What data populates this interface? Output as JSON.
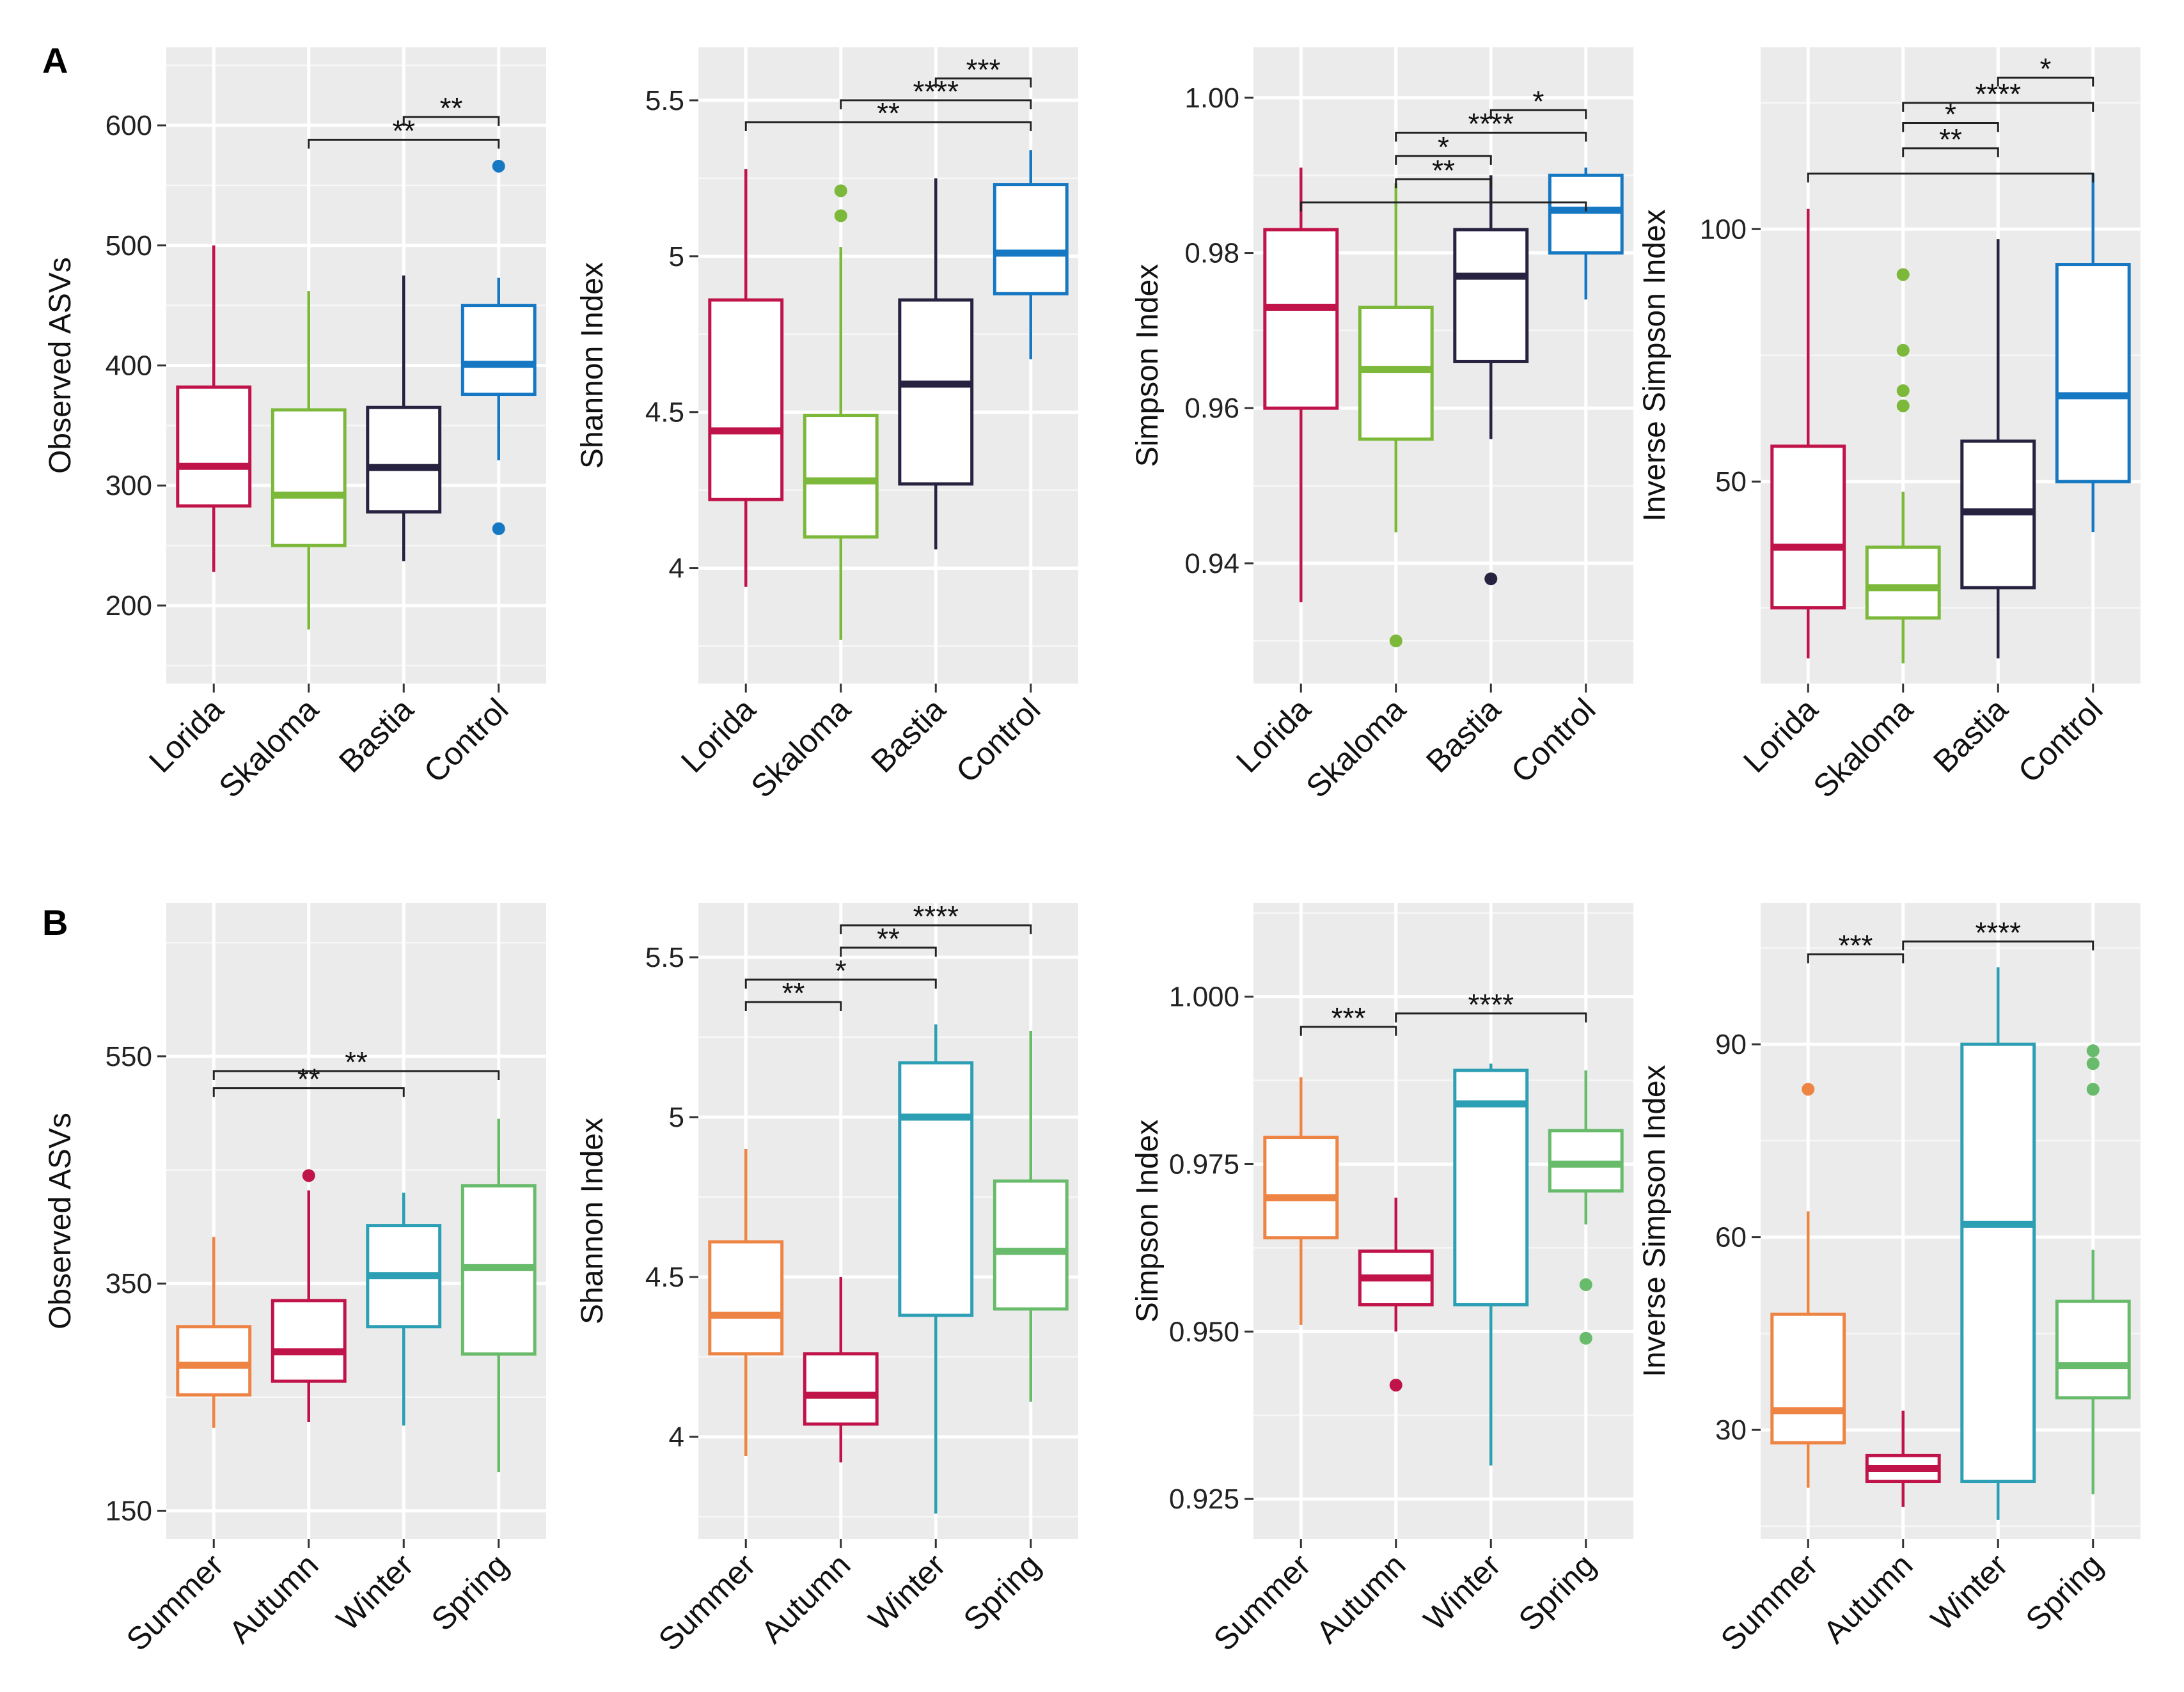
{
  "figure": {
    "panel_labels": [
      "A",
      "B"
    ]
  },
  "chart_data": [
    {
      "type": "boxplot",
      "row": 0,
      "col": 0,
      "ylabel": "Observed ASVs",
      "ylim": [
        135,
        665
      ],
      "yticks": [
        200,
        300,
        400,
        500,
        600
      ],
      "categories": [
        "Lorida",
        "Skaloma",
        "Bastia",
        "Control"
      ],
      "colors": [
        "#c0134a",
        "#7cb83a",
        "#26223f",
        "#1677c2"
      ],
      "boxes": [
        {
          "min": 228,
          "q1": 283,
          "median": 316,
          "q3": 382,
          "max": 500,
          "outliers": []
        },
        {
          "min": 180,
          "q1": 250,
          "median": 292,
          "q3": 363,
          "max": 462,
          "outliers": []
        },
        {
          "min": 237,
          "q1": 278,
          "median": 315,
          "q3": 365,
          "max": 475,
          "outliers": []
        },
        {
          "min": 321,
          "q1": 376,
          "median": 401,
          "q3": 450,
          "max": 473,
          "outliers": [
            264,
            566
          ]
        }
      ],
      "significance": [
        {
          "from": 2,
          "to": 3,
          "label": "**",
          "y": 607
        },
        {
          "from": 1,
          "to": 3,
          "label": "**",
          "y": 588
        }
      ]
    },
    {
      "type": "boxplot",
      "row": 0,
      "col": 1,
      "ylabel": "Shannon Index",
      "ylim": [
        3.63,
        5.67
      ],
      "yticks": [
        4.0,
        4.5,
        5.0,
        5.5
      ],
      "categories": [
        "Lorida",
        "Skaloma",
        "Bastia",
        "Control"
      ],
      "colors": [
        "#c0134a",
        "#7cb83a",
        "#26223f",
        "#1677c2"
      ],
      "boxes": [
        {
          "min": 3.94,
          "q1": 4.22,
          "median": 4.44,
          "q3": 4.86,
          "max": 5.28,
          "outliers": []
        },
        {
          "min": 3.77,
          "q1": 4.1,
          "median": 4.28,
          "q3": 4.49,
          "max": 5.03,
          "outliers": [
            5.13,
            5.21
          ]
        },
        {
          "min": 4.06,
          "q1": 4.27,
          "median": 4.59,
          "q3": 4.86,
          "max": 5.25,
          "outliers": []
        },
        {
          "min": 4.67,
          "q1": 4.88,
          "median": 5.01,
          "q3": 5.23,
          "max": 5.34,
          "outliers": []
        }
      ],
      "significance": [
        {
          "from": 2,
          "to": 3,
          "label": "***",
          "y": 5.57
        },
        {
          "from": 1,
          "to": 3,
          "label": "****",
          "y": 5.5
        },
        {
          "from": 0,
          "to": 3,
          "label": "**",
          "y": 5.43
        }
      ]
    },
    {
      "type": "boxplot",
      "row": 0,
      "col": 2,
      "ylabel": "Simpson Index",
      "ylim": [
        0.9245,
        1.0065
      ],
      "yticks": [
        0.94,
        0.96,
        0.98,
        1.0
      ],
      "ytick_labels": [
        "0.94",
        "0.96",
        "0.98",
        "1.00"
      ],
      "categories": [
        "Lorida",
        "Skaloma",
        "Bastia",
        "Control"
      ],
      "colors": [
        "#c0134a",
        "#7cb83a",
        "#26223f",
        "#1677c2"
      ],
      "boxes": [
        {
          "min": 0.935,
          "q1": 0.96,
          "median": 0.973,
          "q3": 0.983,
          "max": 0.991,
          "outliers": []
        },
        {
          "min": 0.944,
          "q1": 0.956,
          "median": 0.965,
          "q3": 0.973,
          "max": 0.989,
          "outliers": [
            0.93
          ]
        },
        {
          "min": 0.956,
          "q1": 0.966,
          "median": 0.977,
          "q3": 0.983,
          "max": 0.99,
          "outliers": [
            0.938
          ]
        },
        {
          "min": 0.974,
          "q1": 0.98,
          "median": 0.9855,
          "q3": 0.99,
          "max": 0.991,
          "outliers": []
        }
      ],
      "significance": [
        {
          "from": 2,
          "to": 3,
          "label": "*",
          "y": 0.9984
        },
        {
          "from": 1,
          "to": 3,
          "label": "****",
          "y": 0.9955
        },
        {
          "from": 1,
          "to": 2,
          "label": "*",
          "y": 0.9925
        },
        {
          "from": 1,
          "to": 2,
          "label": "**",
          "y": 0.9895
        },
        {
          "from": 0,
          "to": 3,
          "label": "",
          "y": 0.9865
        }
      ]
    },
    {
      "type": "boxplot",
      "row": 0,
      "col": 3,
      "ylabel": "Inverse Simpson Index",
      "ylim": [
        10,
        136
      ],
      "yticks": [
        50,
        100
      ],
      "categories": [
        "Lorida",
        "Skaloma",
        "Bastia",
        "Control"
      ],
      "colors": [
        "#c0134a",
        "#7cb83a",
        "#26223f",
        "#1677c2"
      ],
      "boxes": [
        {
          "min": 15,
          "q1": 25,
          "median": 37,
          "q3": 57,
          "max": 104,
          "outliers": []
        },
        {
          "min": 14,
          "q1": 23,
          "median": 29,
          "q3": 37,
          "max": 48,
          "outliers": [
            65,
            68,
            76,
            91
          ]
        },
        {
          "min": 15,
          "q1": 29,
          "median": 44,
          "q3": 58,
          "max": 98,
          "outliers": []
        },
        {
          "min": 40,
          "q1": 50,
          "median": 67,
          "q3": 93,
          "max": 111,
          "outliers": []
        }
      ],
      "significance": [
        {
          "from": 2,
          "to": 3,
          "label": "*",
          "y": 130
        },
        {
          "from": 1,
          "to": 3,
          "label": "****",
          "y": 125
        },
        {
          "from": 1,
          "to": 2,
          "label": "*",
          "y": 121
        },
        {
          "from": 1,
          "to": 2,
          "label": "**",
          "y": 116
        },
        {
          "from": 0,
          "to": 3,
          "label": "",
          "y": 111
        }
      ]
    },
    {
      "type": "boxplot",
      "row": 1,
      "col": 0,
      "ylabel": "Observed ASVs",
      "ylim": [
        125,
        685
      ],
      "yticks": [
        150,
        350,
        550
      ],
      "categories": [
        "Summer",
        "Autumn",
        "Winter",
        "Spring"
      ],
      "colors": [
        "#ee8444",
        "#c0134a",
        "#2d9fb4",
        "#68bb6b"
      ],
      "boxes": [
        {
          "min": 223,
          "q1": 252,
          "median": 278,
          "q3": 312,
          "max": 391,
          "outliers": []
        },
        {
          "min": 228,
          "q1": 264,
          "median": 290,
          "q3": 335,
          "max": 432,
          "outliers": [
            445
          ]
        },
        {
          "min": 225,
          "q1": 312,
          "median": 357,
          "q3": 401,
          "max": 430,
          "outliers": []
        },
        {
          "min": 184,
          "q1": 288,
          "median": 364,
          "q3": 436,
          "max": 495,
          "outliers": []
        }
      ],
      "significance": [
        {
          "from": 0,
          "to": 3,
          "label": "**",
          "y": 537
        },
        {
          "from": 0,
          "to": 2,
          "label": "**",
          "y": 522
        }
      ]
    },
    {
      "type": "boxplot",
      "row": 1,
      "col": 1,
      "ylabel": "Shannon Index",
      "ylim": [
        3.68,
        5.67
      ],
      "yticks": [
        4.0,
        4.5,
        5.0,
        5.5
      ],
      "categories": [
        "Summer",
        "Autumn",
        "Winter",
        "Spring"
      ],
      "colors": [
        "#ee8444",
        "#c0134a",
        "#2d9fb4",
        "#68bb6b"
      ],
      "boxes": [
        {
          "min": 3.94,
          "q1": 4.26,
          "median": 4.38,
          "q3": 4.61,
          "max": 4.9,
          "outliers": []
        },
        {
          "min": 3.92,
          "q1": 4.04,
          "median": 4.13,
          "q3": 4.26,
          "max": 4.5,
          "outliers": []
        },
        {
          "min": 3.76,
          "q1": 4.38,
          "median": 5.0,
          "q3": 5.17,
          "max": 5.29,
          "outliers": []
        },
        {
          "min": 4.11,
          "q1": 4.4,
          "median": 4.58,
          "q3": 4.8,
          "max": 5.27,
          "outliers": []
        }
      ],
      "significance": [
        {
          "from": 1,
          "to": 3,
          "label": "****",
          "y": 5.6
        },
        {
          "from": 1,
          "to": 2,
          "label": "**",
          "y": 5.53
        },
        {
          "from": 0,
          "to": 2,
          "label": "*",
          "y": 5.43
        },
        {
          "from": 0,
          "to": 1,
          "label": "**",
          "y": 5.36
        }
      ]
    },
    {
      "type": "boxplot",
      "row": 1,
      "col": 2,
      "ylabel": "Simpson Index",
      "ylim": [
        0.919,
        1.014
      ],
      "yticks": [
        0.925,
        0.95,
        0.975,
        1.0
      ],
      "ytick_labels": [
        "0.925",
        "0.950",
        "0.975",
        "1.000"
      ],
      "categories": [
        "Summer",
        "Autumn",
        "Winter",
        "Spring"
      ],
      "colors": [
        "#ee8444",
        "#c0134a",
        "#2d9fb4",
        "#68bb6b"
      ],
      "boxes": [
        {
          "min": 0.951,
          "q1": 0.964,
          "median": 0.97,
          "q3": 0.979,
          "max": 0.988,
          "outliers": []
        },
        {
          "min": 0.95,
          "q1": 0.954,
          "median": 0.958,
          "q3": 0.962,
          "max": 0.97,
          "outliers": [
            0.942
          ]
        },
        {
          "min": 0.93,
          "q1": 0.954,
          "median": 0.984,
          "q3": 0.989,
          "max": 0.99,
          "outliers": []
        },
        {
          "min": 0.966,
          "q1": 0.971,
          "median": 0.975,
          "q3": 0.98,
          "max": 0.989,
          "outliers": [
            0.949,
            0.957
          ]
        }
      ],
      "significance": [
        {
          "from": 0,
          "to": 1,
          "label": "***",
          "y": 0.9955
        },
        {
          "from": 1,
          "to": 3,
          "label": "****",
          "y": 0.9975
        }
      ]
    },
    {
      "type": "boxplot",
      "row": 1,
      "col": 3,
      "ylabel": "Inverse Simpson Index",
      "ylim": [
        13,
        112
      ],
      "yticks": [
        30,
        60,
        90
      ],
      "categories": [
        "Summer",
        "Autumn",
        "Winter",
        "Spring"
      ],
      "colors": [
        "#ee8444",
        "#c0134a",
        "#2d9fb4",
        "#68bb6b"
      ],
      "boxes": [
        {
          "min": 21,
          "q1": 28,
          "median": 33,
          "q3": 48,
          "max": 64,
          "outliers": [
            83
          ]
        },
        {
          "min": 18,
          "q1": 22,
          "median": 24,
          "q3": 26,
          "max": 33,
          "outliers": []
        },
        {
          "min": 16,
          "q1": 22,
          "median": 62,
          "q3": 90,
          "max": 102,
          "outliers": []
        },
        {
          "min": 20,
          "q1": 35,
          "median": 40,
          "q3": 50,
          "max": 58,
          "outliers": [
            83,
            87,
            89
          ]
        }
      ],
      "significance": [
        {
          "from": 0,
          "to": 1,
          "label": "***",
          "y": 104
        },
        {
          "from": 1,
          "to": 3,
          "label": "****",
          "y": 106
        }
      ]
    }
  ]
}
